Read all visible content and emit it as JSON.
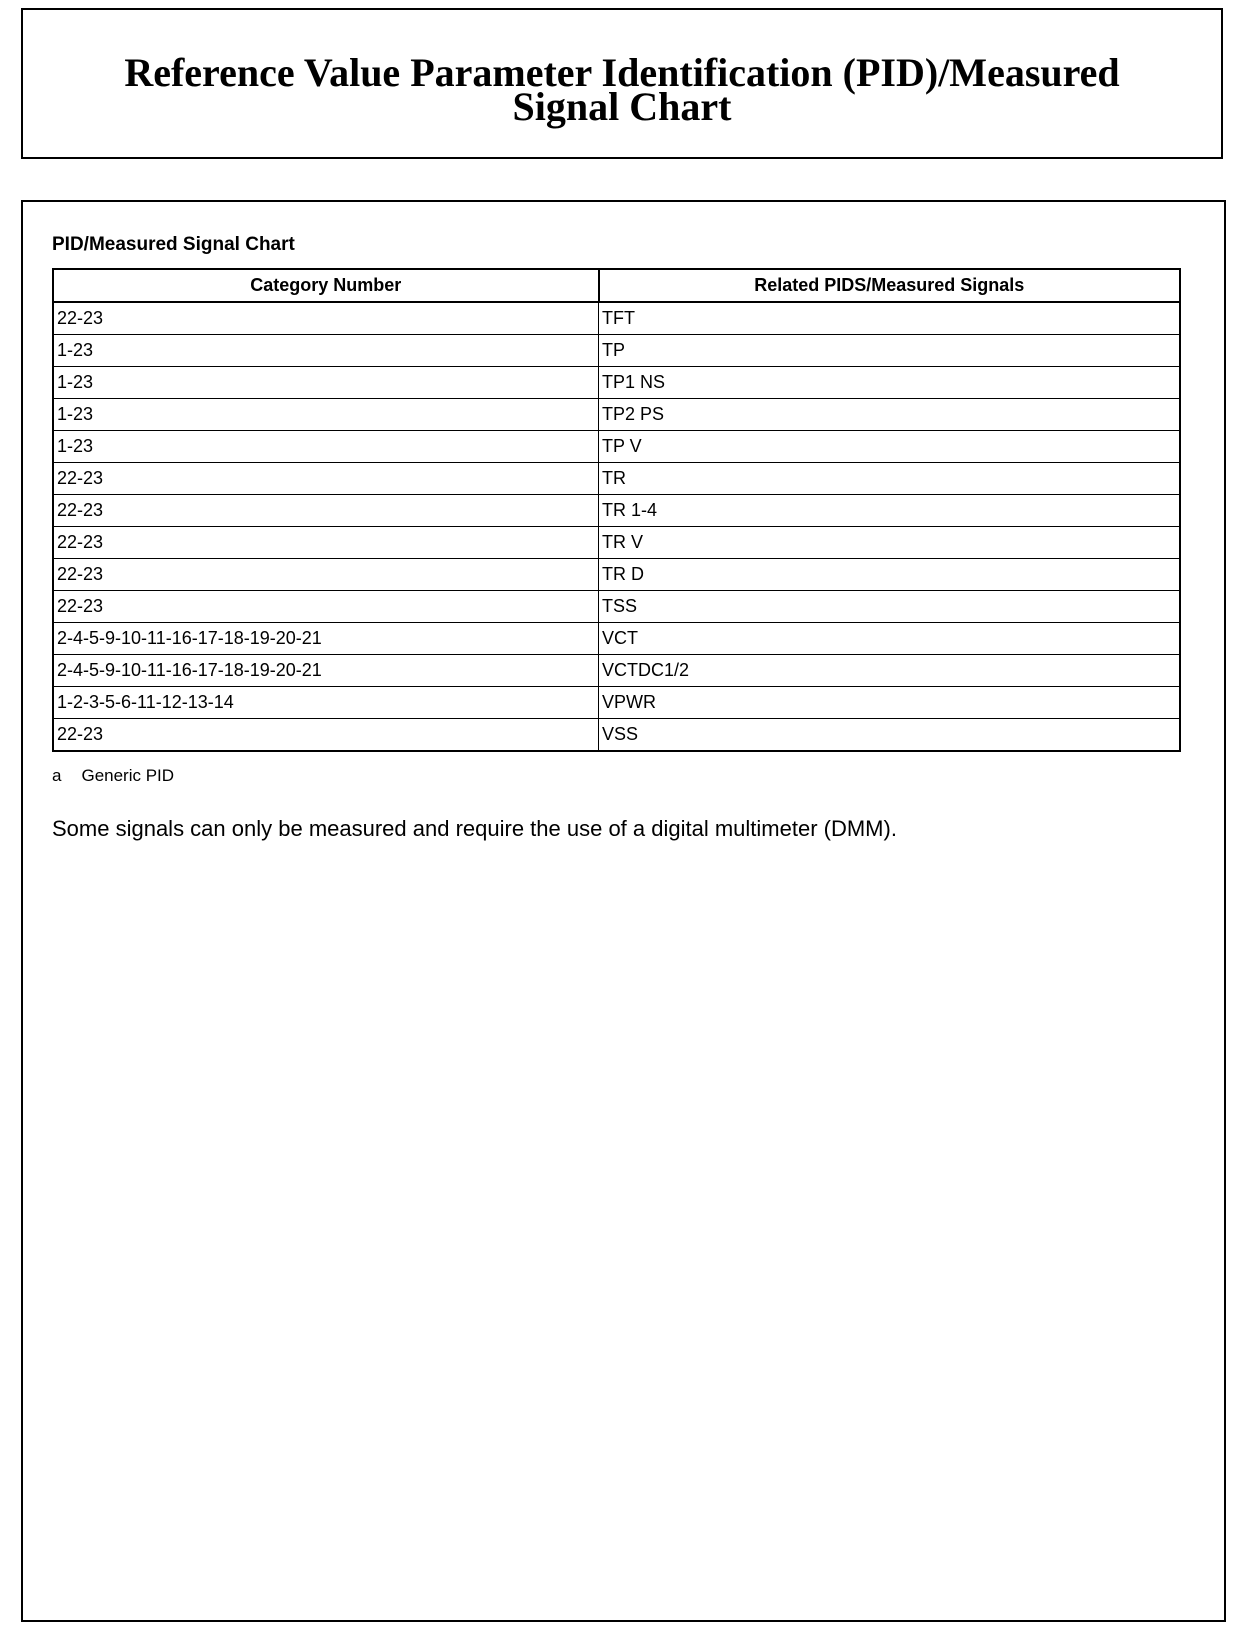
{
  "header": {
    "title_line1": "Reference Value Parameter Identification (PID)/Measured",
    "title_line2": "Signal Chart"
  },
  "table": {
    "title": "PID/Measured Signal Chart",
    "columns": [
      "Category Number",
      "Related PIDS/Measured Signals"
    ],
    "rows": [
      [
        "22-23",
        "TFT"
      ],
      [
        "1-23",
        "TP"
      ],
      [
        "1-23",
        "TP1 NS"
      ],
      [
        "1-23",
        "TP2 PS"
      ],
      [
        "1-23",
        "TP V"
      ],
      [
        "22-23",
        "TR"
      ],
      [
        "22-23",
        "TR 1-4"
      ],
      [
        "22-23",
        "TR V"
      ],
      [
        "22-23",
        "TR D"
      ],
      [
        "22-23",
        "TSS"
      ],
      [
        "2-4-5-9-10-11-16-17-18-19-20-21",
        "VCT"
      ],
      [
        "2-4-5-9-10-11-16-17-18-19-20-21",
        "VCTDC1/2"
      ],
      [
        "1-2-3-5-6-11-12-13-14",
        "VPWR"
      ],
      [
        "22-23",
        "VSS"
      ]
    ],
    "footnote": {
      "marker": "a",
      "text": "Generic PID"
    }
  },
  "note": "Some signals can only be measured and require the use of a digital multimeter (DMM)."
}
